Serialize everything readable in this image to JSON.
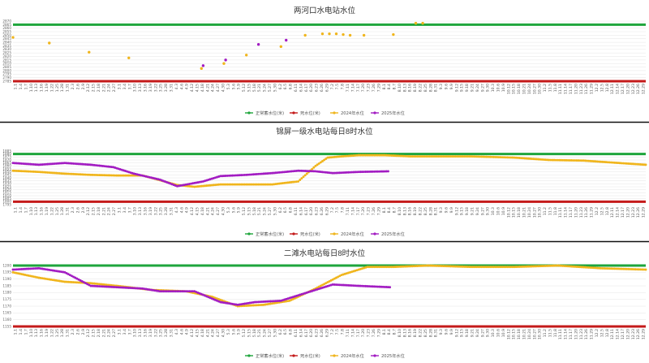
{
  "colors": {
    "normal": "#1ea53c",
    "dead": "#c41a1a",
    "y2024": "#f0b51c",
    "y2025": "#a21cc2",
    "grid": "#e6e6e6",
    "divider": "#111111"
  },
  "x_labels": [
    "1.1",
    "1.4",
    "1.7",
    "1.10",
    "1.13",
    "1.16",
    "1.19",
    "1.22",
    "1.25",
    "1.28",
    "1.31",
    "2.3",
    "2.6",
    "2.9",
    "2.12",
    "2.15",
    "2.18",
    "2.21",
    "2.24",
    "2.27",
    "3.1",
    "3.4",
    "3.7",
    "3.10",
    "3.13",
    "3.16",
    "3.19",
    "3.22",
    "3.25",
    "3.28",
    "3.31",
    "4.3",
    "4.6",
    "4.9",
    "4.12",
    "4.15",
    "4.18",
    "4.21",
    "4.24",
    "4.27",
    "4.30",
    "5.3",
    "5.6",
    "5.9",
    "5.12",
    "5.15",
    "5.18",
    "5.21",
    "5.24",
    "5.27",
    "5.30",
    "6.2",
    "6.5",
    "6.8",
    "6.11",
    "6.14",
    "6.17",
    "6.20",
    "6.23",
    "6.26",
    "6.29",
    "7.2",
    "7.5",
    "7.8",
    "7.11",
    "7.14",
    "7.17",
    "7.20",
    "7.23",
    "7.26",
    "7.29",
    "8.1",
    "8.4",
    "8.7",
    "8.10",
    "8.13",
    "8.16",
    "8.19",
    "8.22",
    "8.25",
    "8.28",
    "8.31",
    "9.3",
    "9.6",
    "9.9",
    "9.12",
    "9.15",
    "9.18",
    "9.21",
    "9.24",
    "9.27",
    "9.30",
    "10.3",
    "10.6",
    "10.9",
    "10.12",
    "10.15",
    "10.18",
    "10.21",
    "10.24",
    "10.27",
    "10.30",
    "11.2",
    "11.5",
    "11.8",
    "11.11",
    "11.14",
    "11.17",
    "11.20",
    "11.23",
    "11.26",
    "11.29",
    "12.2",
    "12.5",
    "12.8",
    "12.11",
    "12.14",
    "12.17",
    "12.20",
    "12.23",
    "12.26",
    "12.29"
  ],
  "legend": [
    "正常蓄水位(米)",
    "死水位(米)",
    "2024年水位",
    "2025年水位"
  ],
  "chart_data": [
    {
      "type": "line",
      "title": "两河口水电站水位",
      "ylim": [
        2785,
        2870
      ],
      "yticks": [
        2785,
        2790,
        2795,
        2800,
        2805,
        2810,
        2815,
        2820,
        2825,
        2830,
        2835,
        2840,
        2845,
        2850,
        2855,
        2860,
        2865,
        2870
      ],
      "normal_level": 2865,
      "dead_level": 2785,
      "series": [
        {
          "name": "2024年水位",
          "points": [
            [
              0,
              2847
            ],
            [
              21,
              2839
            ],
            [
              44,
              2826
            ],
            [
              67,
              2818
            ],
            [
              109,
              2803
            ],
            [
              122,
              2810
            ],
            [
              135,
              2822
            ],
            [
              155,
              2834
            ],
            [
              169,
              2850
            ],
            [
              179,
              2852
            ],
            [
              183,
              2852
            ],
            [
              187,
              2852
            ],
            [
              191,
              2851
            ],
            [
              195,
              2850
            ],
            [
              203,
              2850
            ],
            [
              220,
              2851
            ],
            [
              233,
              2867
            ],
            [
              237,
              2867
            ]
          ]
        },
        {
          "name": "2025年水位",
          "points": [
            [
              110,
              2807
            ],
            [
              123,
              2815
            ],
            [
              142,
              2837
            ],
            [
              158,
              2843
            ]
          ]
        }
      ]
    },
    {
      "type": "line",
      "title": "锦屏一级水电站每日8时水位",
      "ylim": [
        1795,
        1885
      ],
      "yticks": [
        1795,
        1800,
        1805,
        1810,
        1815,
        1820,
        1825,
        1830,
        1835,
        1840,
        1845,
        1850,
        1855,
        1860,
        1865,
        1870,
        1875,
        1880,
        1885
      ],
      "normal_level": 1880,
      "dead_level": 1800,
      "series": [
        {
          "name": "2024年水位",
          "points": [
            [
              0,
              1852
            ],
            [
              15,
              1850
            ],
            [
              30,
              1847
            ],
            [
              45,
              1845
            ],
            [
              60,
              1844
            ],
            [
              75,
              1844
            ],
            [
              85,
              1836
            ],
            [
              95,
              1828
            ],
            [
              105,
              1825
            ],
            [
              120,
              1829
            ],
            [
              135,
              1829
            ],
            [
              150,
              1829
            ],
            [
              165,
              1834
            ],
            [
              175,
              1860
            ],
            [
              182,
              1874
            ],
            [
              190,
              1876
            ],
            [
              200,
              1878
            ],
            [
              215,
              1878
            ],
            [
              230,
              1876
            ],
            [
              245,
              1876
            ],
            [
              265,
              1876
            ],
            [
              290,
              1874
            ],
            [
              310,
              1870
            ],
            [
              330,
              1869
            ],
            [
              340,
              1867
            ],
            [
              366,
              1862
            ]
          ]
        },
        {
          "name": "2025年水位",
          "points": [
            [
              0,
              1865
            ],
            [
              15,
              1862
            ],
            [
              30,
              1865
            ],
            [
              45,
              1862
            ],
            [
              58,
              1858
            ],
            [
              70,
              1847
            ],
            [
              85,
              1837
            ],
            [
              95,
              1826
            ],
            [
              110,
              1834
            ],
            [
              120,
              1843
            ],
            [
              135,
              1845
            ],
            [
              150,
              1848
            ],
            [
              165,
              1852
            ],
            [
              175,
              1851
            ],
            [
              185,
              1848
            ],
            [
              200,
              1850
            ],
            [
              217,
              1851
            ]
          ]
        }
      ]
    },
    {
      "type": "line",
      "title": "二滩水电站每日8时水位",
      "ylim": [
        1155,
        1200
      ],
      "yticks": [
        1155,
        1160,
        1165,
        1170,
        1175,
        1180,
        1185,
        1190,
        1195,
        1200
      ],
      "normal_level": 1200,
      "dead_level": 1155,
      "series": [
        {
          "name": "2024年水位",
          "points": [
            [
              0,
              1195
            ],
            [
              15,
              1191
            ],
            [
              30,
              1188
            ],
            [
              45,
              1187
            ],
            [
              60,
              1185
            ],
            [
              80,
              1182
            ],
            [
              100,
              1181
            ],
            [
              115,
              1177
            ],
            [
              130,
              1170
            ],
            [
              145,
              1171
            ],
            [
              160,
              1174
            ],
            [
              175,
              1183
            ],
            [
              190,
              1193
            ],
            [
              205,
              1199
            ],
            [
              220,
              1199
            ],
            [
              240,
              1200
            ],
            [
              265,
              1199
            ],
            [
              290,
              1199
            ],
            [
              315,
              1200
            ],
            [
              340,
              1198
            ],
            [
              366,
              1197
            ]
          ]
        },
        {
          "name": "2025年水位",
          "points": [
            [
              0,
              1197
            ],
            [
              15,
              1198
            ],
            [
              30,
              1195
            ],
            [
              45,
              1185
            ],
            [
              60,
              1184
            ],
            [
              75,
              1183
            ],
            [
              85,
              1181
            ],
            [
              105,
              1181
            ],
            [
              120,
              1173
            ],
            [
              130,
              1171
            ],
            [
              140,
              1173
            ],
            [
              155,
              1174
            ],
            [
              170,
              1180
            ],
            [
              185,
              1186
            ],
            [
              200,
              1185
            ],
            [
              218,
              1184
            ]
          ]
        }
      ]
    }
  ]
}
